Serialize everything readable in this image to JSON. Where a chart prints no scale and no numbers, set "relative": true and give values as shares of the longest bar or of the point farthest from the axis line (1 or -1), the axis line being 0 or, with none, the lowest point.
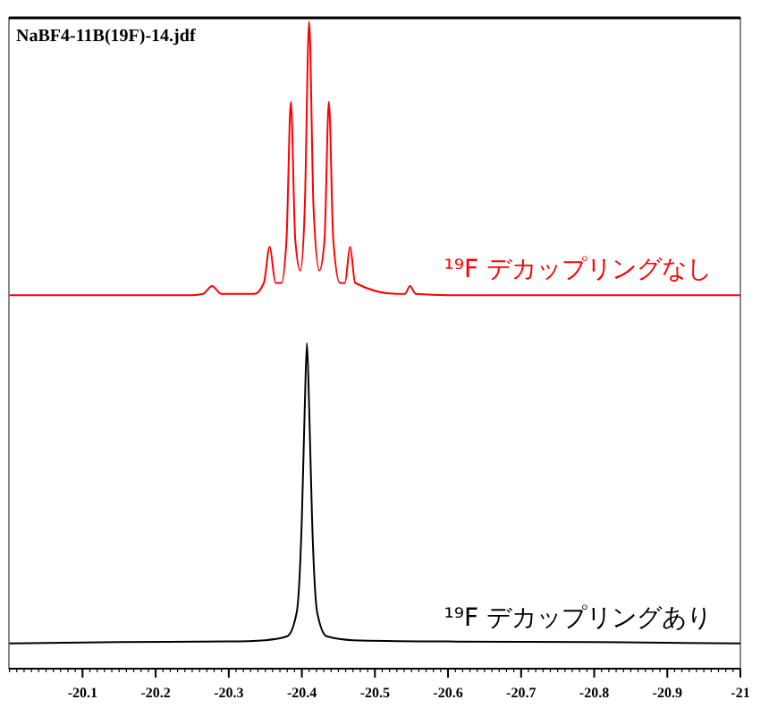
{
  "chart_data": {
    "type": "line",
    "title": "NaBF4-11B(19F)-14.jdf",
    "relative": true,
    "xlim": [
      -20.0,
      -21.0
    ],
    "xticks": [
      -20.1,
      -20.2,
      -20.3,
      -20.4,
      -20.5,
      -20.6,
      -20.7,
      -20.8,
      -20.9,
      -21.0
    ],
    "tick_labels": "x",
    "grid": false,
    "legend": false,
    "marker": "none",
    "line_style": "solid",
    "series": [
      {
        "name": "¹⁹F デカップリングなし",
        "color": "#ff0000",
        "x": [
          -20.0,
          -20.25,
          -20.265,
          -20.277,
          -20.29,
          -20.335,
          -20.348,
          -20.356,
          -20.364,
          -20.372,
          -20.379,
          -20.385,
          -20.391,
          -20.398,
          -20.404,
          -20.41,
          -20.416,
          -20.424,
          -20.431,
          -20.437,
          -20.443,
          -20.452,
          -20.459,
          -20.466,
          -20.473,
          -20.53,
          -20.541,
          -20.548,
          -20.556,
          -20.6,
          -21.0
        ],
        "values": [
          0.577,
          0.577,
          0.579,
          0.591,
          0.579,
          0.579,
          0.596,
          0.652,
          0.596,
          0.596,
          0.663,
          0.876,
          0.663,
          0.615,
          0.712,
          1.0,
          0.712,
          0.615,
          0.663,
          0.876,
          0.663,
          0.596,
          0.596,
          0.652,
          0.596,
          0.579,
          0.579,
          0.591,
          0.579,
          0.577,
          0.577
        ]
      },
      {
        "name": "¹⁹F デカップリングあり",
        "color": "#000000",
        "x": [
          -20.0,
          -20.15,
          -20.3,
          -20.35,
          -20.38,
          -20.393,
          -20.4,
          -20.404,
          -20.407,
          -20.41,
          -20.414,
          -20.421,
          -20.434,
          -20.47,
          -20.6,
          -20.8,
          -21.0
        ],
        "values": [
          0.039,
          0.041,
          0.042,
          0.044,
          0.05,
          0.087,
          0.231,
          0.404,
          0.503,
          0.404,
          0.231,
          0.087,
          0.05,
          0.044,
          0.042,
          0.041,
          0.039
        ]
      }
    ]
  }
}
